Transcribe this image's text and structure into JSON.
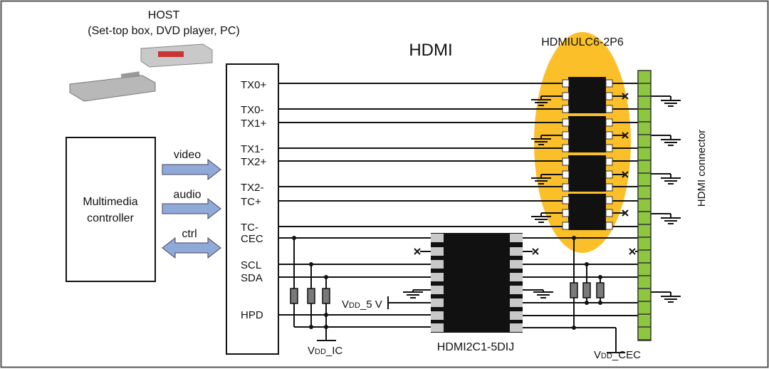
{
  "host": {
    "title": "HOST",
    "subtitle": "(Set-top box, DVD player, PC)"
  },
  "controller": {
    "line1": "Multimedia",
    "line2": "controller"
  },
  "arrows": {
    "video": "video",
    "audio": "audio",
    "ctrl": "ctrl"
  },
  "hdmi_title": "HDMI",
  "pins": [
    "TX0+",
    "TX0-",
    "TX1+",
    "TX1-",
    "TX2+",
    "TX2-",
    "TC+",
    "TC-",
    "CEC",
    "SCL",
    "SDA",
    "HPD"
  ],
  "esd_chip": {
    "name": "HDMIULC6-2P6"
  },
  "interface_chip": {
    "name": "HDMI2C1-5DIJ"
  },
  "connector": {
    "label": "HDMI connector"
  },
  "supplies": {
    "vdd_5v": {
      "v": "V",
      "sub": "DD",
      "rest": "_5 V"
    },
    "vdd_ic": {
      "v": "V",
      "sub": "DD",
      "rest": "_IC"
    },
    "vdd_cec": {
      "v": "V",
      "sub": "DD",
      "rest": "_CEC"
    }
  },
  "colors": {
    "esd_highlight": "#fbbf2a",
    "connector": "#8dc63f",
    "arrow": "#8fa9d8",
    "chip": "#111111",
    "resistor": "#7a7a7a"
  }
}
